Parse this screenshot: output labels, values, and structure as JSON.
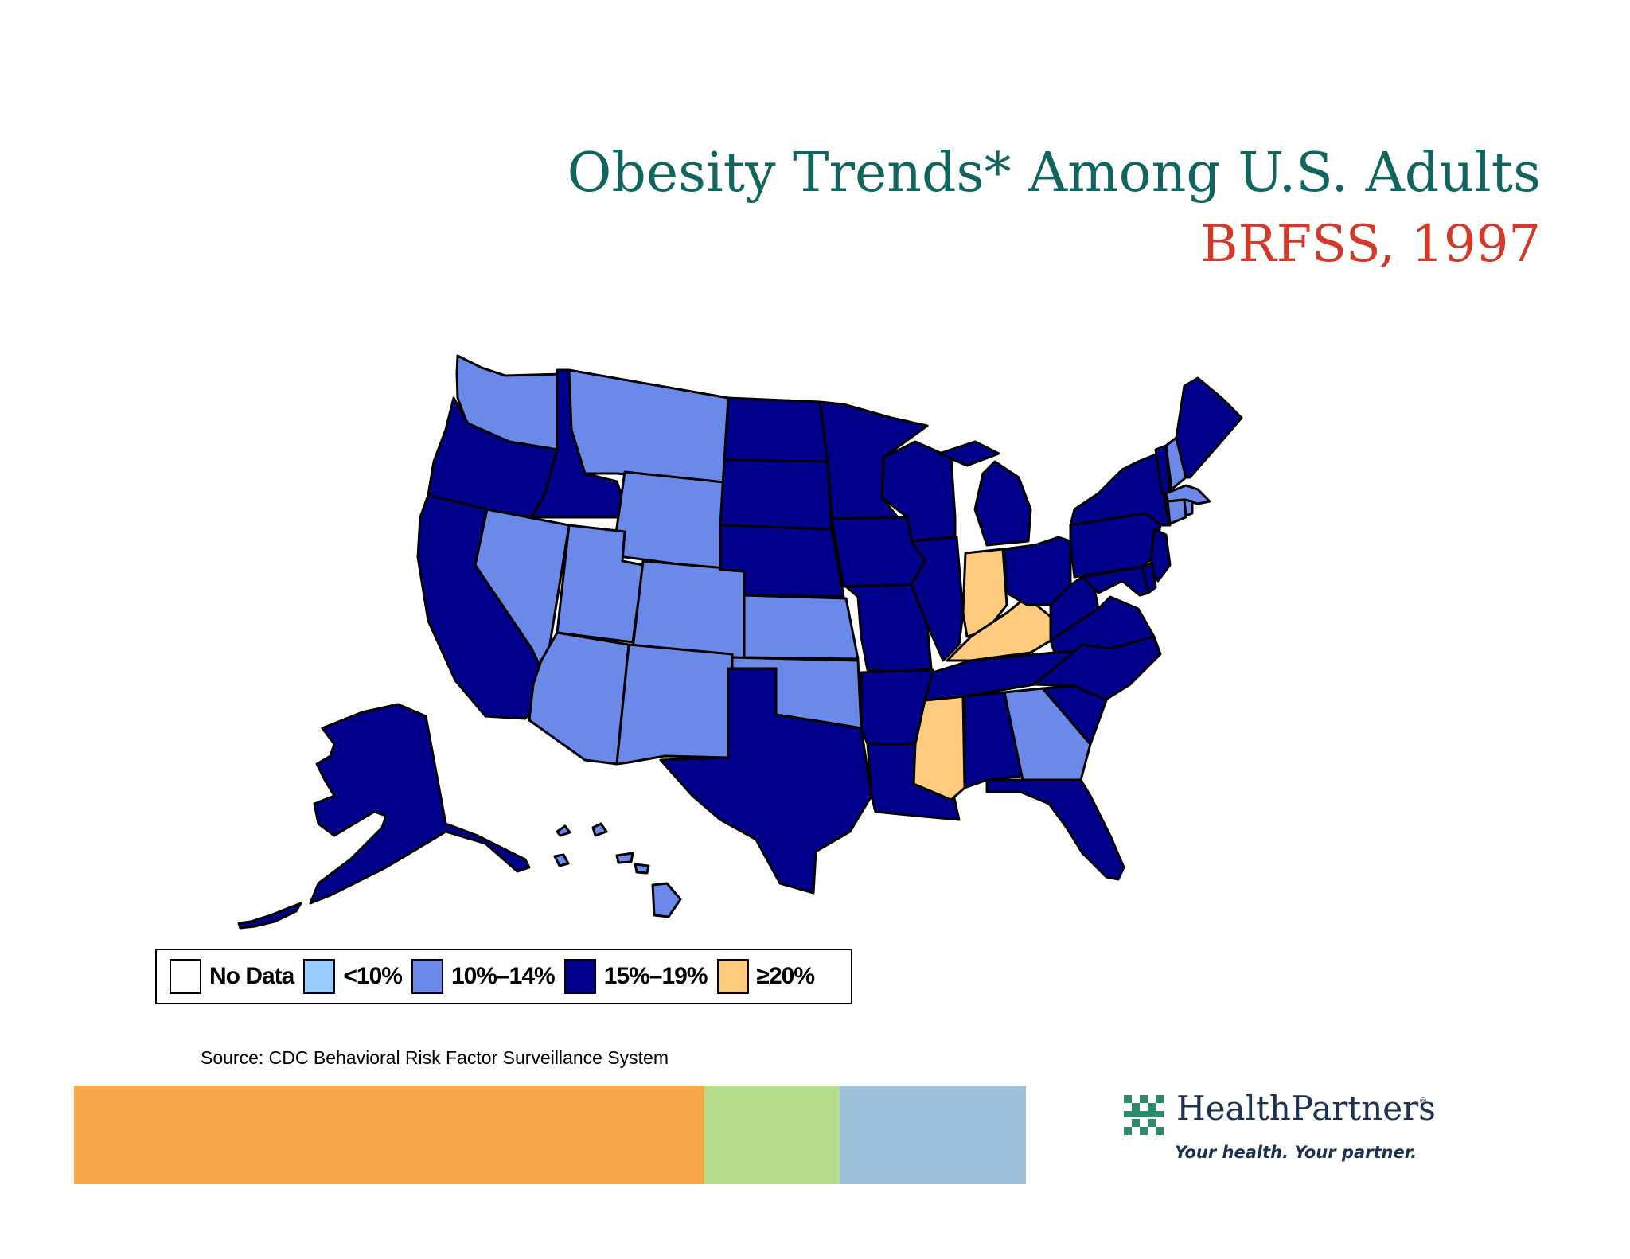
{
  "title": "Obesity Trends* Among U.S. Adults",
  "subtitle": "BRFSS, 1997",
  "legend": [
    {
      "label": "No Data",
      "color": "#ffffff"
    },
    {
      "label": "<10%",
      "color": "#99ccff"
    },
    {
      "label": "10%–14%",
      "color": "#6a89e8"
    },
    {
      "label": "15%–19%",
      "color": "#00008b"
    },
    {
      "label": "≥20%",
      "color": "#fecb7f"
    }
  ],
  "states": {
    "WA": "10%–14%",
    "OR": "15%–19%",
    "CA": "15%–19%",
    "ID": "15%–19%",
    "NV": "10%–14%",
    "MT": "10%–14%",
    "WY": "10%–14%",
    "UT": "10%–14%",
    "CO": "10%–14%",
    "AZ": "10%–14%",
    "NM": "10%–14%",
    "ND": "15%–19%",
    "SD": "15%–19%",
    "NE": "15%–19%",
    "KS": "10%–14%",
    "OK": "10%–14%",
    "TX": "15%–19%",
    "MN": "15%–19%",
    "IA": "15%–19%",
    "MO": "15%–19%",
    "AR": "15%–19%",
    "LA": "15%–19%",
    "WI": "15%–19%",
    "IL": "15%–19%",
    "MI": "15%–19%",
    "IN": "≥20%",
    "KY": "≥20%",
    "MS": "≥20%",
    "TN": "15%–19%",
    "AL": "15%–19%",
    "GA": "10%–14%",
    "FL": "15%–19%",
    "OH": "15%–19%",
    "WV": "15%–19%",
    "VA": "15%–19%",
    "NC": "15%–19%",
    "SC": "15%–19%",
    "PA": "15%–19%",
    "NY": "15%–19%",
    "NJ": "15%–19%",
    "MD": "15%–19%",
    "DE": "15%–19%",
    "VT": "15%–19%",
    "NH": "10%–14%",
    "ME": "15%–19%",
    "MA": "10%–14%",
    "CT": "10%–14%",
    "RI": "10%–14%",
    "AK": "15%–19%",
    "HI": "10%–14%"
  },
  "source": "Source: CDC Behavioral Risk Factor Surveillance  System",
  "color_bar": [
    "#f7a84a",
    "#b6dd8b",
    "#9fc1dc"
  ],
  "logo": {
    "name": "HealthPartners",
    "registered": "®",
    "tagline": "Your health. Your partner.",
    "color": "#1d3252"
  }
}
